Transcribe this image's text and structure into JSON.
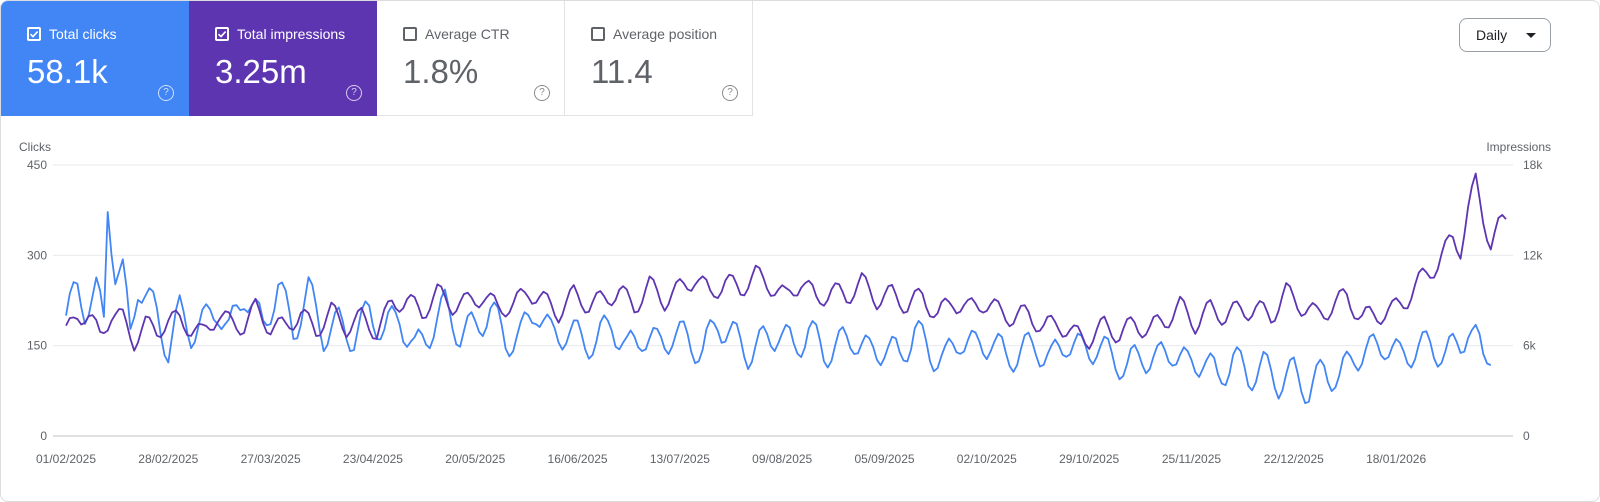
{
  "metrics": [
    {
      "label": "Total clicks",
      "value": "58.1k",
      "checked": true
    },
    {
      "label": "Total impressions",
      "value": "3.25m",
      "checked": true
    },
    {
      "label": "Average CTR",
      "value": "1.8%",
      "checked": false
    },
    {
      "label": "Average position",
      "value": "11.4",
      "checked": false
    }
  ],
  "period_select": {
    "value": "Daily"
  },
  "help_glyph": "?",
  "colors": {
    "clicks": "#4285f4",
    "impressions": "#5e35b1",
    "grid": "#e8eaed",
    "axis": "#5f6368"
  },
  "chart_data": {
    "type": "line",
    "grid": true,
    "left_axis": {
      "label": "Clicks",
      "ticks": [
        0,
        150,
        300,
        450
      ],
      "tick_labels": [
        "0",
        "150",
        "300",
        "450"
      ],
      "range": [
        0,
        450
      ]
    },
    "right_axis": {
      "label": "Impressions",
      "ticks": [
        0,
        6000,
        12000,
        18000
      ],
      "tick_labels": [
        "0",
        "6k",
        "12k",
        "18k"
      ],
      "range": [
        0,
        18000
      ]
    },
    "x_tick_labels": [
      "01/02/2025",
      "28/02/2025",
      "27/03/2025",
      "23/04/2025",
      "20/05/2025",
      "16/06/2025",
      "13/07/2025",
      "09/08/2025",
      "05/09/2025",
      "02/10/2025",
      "29/10/2025",
      "25/11/2025",
      "22/12/2025",
      "18/01/2026"
    ],
    "x_start": "01/02/2025",
    "x_end": "03/02/2026",
    "series": [
      {
        "name": "Clicks",
        "axis": "left",
        "color": "#4285f4",
        "keypoints": [
          [
            0,
            200
          ],
          [
            3,
            240
          ],
          [
            5,
            215
          ],
          [
            8,
            240
          ],
          [
            10,
            185
          ],
          [
            11,
            385
          ],
          [
            13,
            275
          ],
          [
            15,
            270
          ],
          [
            17,
            165
          ],
          [
            19,
            255
          ],
          [
            24,
            200
          ],
          [
            27,
            145
          ],
          [
            30,
            205
          ],
          [
            33,
            175
          ],
          [
            37,
            190
          ],
          [
            40,
            215
          ],
          [
            43,
            170
          ],
          [
            47,
            240
          ],
          [
            52,
            180
          ],
          [
            56,
            250
          ],
          [
            60,
            175
          ],
          [
            64,
            240
          ],
          [
            68,
            170
          ],
          [
            72,
            185
          ],
          [
            76,
            165
          ],
          [
            80,
            205
          ],
          [
            84,
            175
          ],
          [
            88,
            200
          ],
          [
            92,
            140
          ],
          [
            96,
            175
          ],
          [
            100,
            215
          ],
          [
            104,
            170
          ],
          [
            108,
            180
          ],
          [
            112,
            210
          ],
          [
            116,
            160
          ],
          [
            120,
            165
          ],
          [
            124,
            215
          ],
          [
            128,
            165
          ],
          [
            132,
            175
          ],
          [
            136,
            160
          ],
          [
            140,
            155
          ],
          [
            144,
            190
          ],
          [
            148,
            140
          ],
          [
            152,
            170
          ],
          [
            156,
            150
          ],
          [
            160,
            170
          ],
          [
            164,
            160
          ],
          [
            168,
            140
          ],
          [
            172,
            190
          ],
          [
            176,
            165
          ],
          [
            180,
            140
          ],
          [
            184,
            155
          ],
          [
            188,
            175
          ],
          [
            192,
            145
          ],
          [
            196,
            175
          ],
          [
            200,
            140
          ],
          [
            204,
            150
          ],
          [
            208,
            165
          ],
          [
            212,
            135
          ],
          [
            216,
            150
          ],
          [
            220,
            130
          ],
          [
            224,
            175
          ],
          [
            228,
            140
          ],
          [
            232,
            125
          ],
          [
            236,
            165
          ],
          [
            240,
            145
          ],
          [
            244,
            160
          ],
          [
            248,
            130
          ],
          [
            252,
            140
          ],
          [
            256,
            150
          ],
          [
            260,
            125
          ],
          [
            264,
            160
          ],
          [
            268,
            140
          ],
          [
            272,
            150
          ],
          [
            276,
            130
          ],
          [
            280,
            115
          ],
          [
            284,
            135
          ],
          [
            288,
            125
          ],
          [
            292,
            145
          ],
          [
            296,
            115
          ],
          [
            300,
            130
          ],
          [
            304,
            95
          ],
          [
            308,
            130
          ],
          [
            312,
            100
          ],
          [
            316,
            115
          ],
          [
            320,
            90
          ],
          [
            324,
            105
          ],
          [
            328,
            75
          ],
          [
            332,
            110
          ],
          [
            336,
            95
          ],
          [
            340,
            135
          ],
          [
            344,
            140
          ],
          [
            348,
            155
          ],
          [
            352,
            130
          ],
          [
            356,
            145
          ],
          [
            360,
            150
          ],
          [
            364,
            135
          ],
          [
            368,
            155
          ],
          [
            370,
            180
          ],
          [
            372,
            160
          ],
          [
            374,
            130
          ],
          [
            376,
            145
          ]
        ]
      },
      {
        "name": "Impressions",
        "axis": "right",
        "color": "#5e35b1",
        "keypoints": [
          [
            0,
            6800
          ],
          [
            3,
            8100
          ],
          [
            6,
            7900
          ],
          [
            9,
            6700
          ],
          [
            12,
            8100
          ],
          [
            15,
            7800
          ],
          [
            18,
            6300
          ],
          [
            21,
            7400
          ],
          [
            24,
            7000
          ],
          [
            27,
            7600
          ],
          [
            30,
            7800
          ],
          [
            33,
            7100
          ],
          [
            36,
            6800
          ],
          [
            40,
            8000
          ],
          [
            43,
            7600
          ],
          [
            47,
            7300
          ],
          [
            50,
            8500
          ],
          [
            54,
            7200
          ],
          [
            58,
            7300
          ],
          [
            62,
            8100
          ],
          [
            66,
            7000
          ],
          [
            70,
            8300
          ],
          [
            74,
            7200
          ],
          [
            78,
            7900
          ],
          [
            82,
            6900
          ],
          [
            86,
            8800
          ],
          [
            90,
            9000
          ],
          [
            94,
            8200
          ],
          [
            98,
            9500
          ],
          [
            102,
            8700
          ],
          [
            106,
            8900
          ],
          [
            110,
            9300
          ],
          [
            114,
            8500
          ],
          [
            118,
            8700
          ],
          [
            122,
            9600
          ],
          [
            126,
            9000
          ],
          [
            130,
            8200
          ],
          [
            134,
            9400
          ],
          [
            138,
            8700
          ],
          [
            142,
            9100
          ],
          [
            146,
            9600
          ],
          [
            150,
            8600
          ],
          [
            154,
            10000
          ],
          [
            158,
            9000
          ],
          [
            162,
            9800
          ],
          [
            166,
            10500
          ],
          [
            170,
            9500
          ],
          [
            174,
            10200
          ],
          [
            178,
            9800
          ],
          [
            182,
            10700
          ],
          [
            186,
            10000
          ],
          [
            190,
            9200
          ],
          [
            194,
            10300
          ],
          [
            198,
            9100
          ],
          [
            202,
            9600
          ],
          [
            206,
            9300
          ],
          [
            210,
            10200
          ],
          [
            214,
            9100
          ],
          [
            218,
            9400
          ],
          [
            222,
            8700
          ],
          [
            226,
            9300
          ],
          [
            230,
            8000
          ],
          [
            234,
            9000
          ],
          [
            238,
            8400
          ],
          [
            242,
            8900
          ],
          [
            246,
            8300
          ],
          [
            250,
            7900
          ],
          [
            254,
            8100
          ],
          [
            258,
            7200
          ],
          [
            262,
            7500
          ],
          [
            266,
            6700
          ],
          [
            270,
            6500
          ],
          [
            274,
            7300
          ],
          [
            278,
            6800
          ],
          [
            282,
            7400
          ],
          [
            286,
            7100
          ],
          [
            290,
            7700
          ],
          [
            294,
            8600
          ],
          [
            298,
            7500
          ],
          [
            302,
            8400
          ],
          [
            306,
            8000
          ],
          [
            310,
            8400
          ],
          [
            314,
            8400
          ],
          [
            318,
            8000
          ],
          [
            322,
            9500
          ],
          [
            326,
            8700
          ],
          [
            330,
            8000
          ],
          [
            334,
            8600
          ],
          [
            338,
            9300
          ],
          [
            342,
            7800
          ],
          [
            346,
            8100
          ],
          [
            350,
            8300
          ],
          [
            354,
            9200
          ],
          [
            358,
            10500
          ],
          [
            362,
            11500
          ],
          [
            366,
            13100
          ],
          [
            368,
            12500
          ],
          [
            370,
            15000
          ],
          [
            372,
            16800
          ],
          [
            374,
            14600
          ],
          [
            376,
            12800
          ],
          [
            378,
            13800
          ],
          [
            380,
            14300
          ]
        ]
      }
    ]
  }
}
